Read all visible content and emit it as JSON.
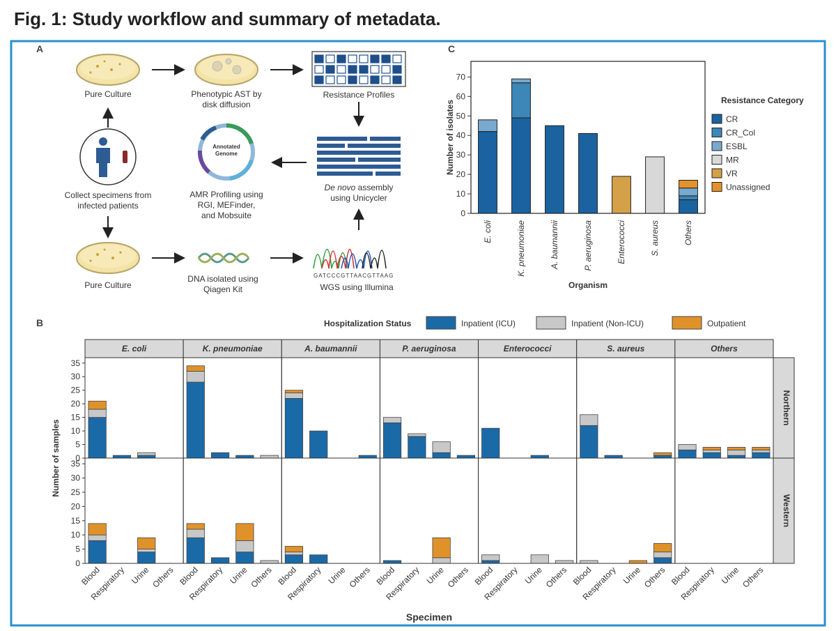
{
  "title": "Fig. 1: Study workflow and summary of metadata.",
  "panel_labels": {
    "a": "A",
    "b": "B",
    "c": "C"
  },
  "workflow": {
    "pure_culture_top": [
      "Pure Culture"
    ],
    "phenotypic_ast": [
      "Phenotypic AST by",
      "disk diffusion"
    ],
    "resistance_profiles": [
      "Resistance Profiles"
    ],
    "collect_specimens": [
      "Collect specimens from",
      "infected patients"
    ],
    "annotated_genome": [
      "Annotated",
      "Genome"
    ],
    "amr_profiling": [
      "AMR Profiling using",
      "RGI, MEFinder,",
      "and Mobsuite"
    ],
    "assembly": {
      "italic": "De novo",
      "rest": "assembly",
      "line2": "using Unicycler"
    },
    "pure_culture_bottom": [
      "Pure Culture"
    ],
    "dna_isolated": [
      "DNA isolated using",
      "Qiagen Kit"
    ],
    "wgs": [
      "WGS using Illumina"
    ]
  },
  "chart_data": [
    {
      "type": "stacked_bar",
      "y_label": "Number of isolates",
      "x_label": "Organism",
      "legend_title": "Resistance Category",
      "categories": [
        "E. coli",
        "K. pneumoniae",
        "A. baumannii",
        "P. aeruginosa",
        "Enterococci",
        "S. aureus",
        "Others"
      ],
      "series": [
        {
          "name": "CR",
          "color": "#1a63a0",
          "values": [
            42,
            49,
            45,
            41,
            0,
            0,
            7
          ]
        },
        {
          "name": "CR_Col",
          "color": "#3d86b8",
          "values": [
            0,
            18,
            0,
            0,
            0,
            0,
            2
          ]
        },
        {
          "name": "ESBL",
          "color": "#78a9cf",
          "values": [
            6,
            2,
            0,
            0,
            0,
            0,
            4
          ]
        },
        {
          "name": "MR",
          "color": "#d8d8d8",
          "values": [
            0,
            0,
            0,
            0,
            0,
            29,
            0
          ]
        },
        {
          "name": "VR",
          "color": "#d4a048",
          "values": [
            0,
            0,
            0,
            0,
            19,
            0,
            0
          ]
        },
        {
          "name": "Unassigned",
          "color": "#e3922a",
          "values": [
            0,
            0,
            0,
            0,
            0,
            0,
            4
          ]
        }
      ],
      "ylim": [
        0,
        78
      ],
      "yticks": [
        0,
        10,
        20,
        30,
        40,
        50,
        60,
        70
      ]
    },
    {
      "type": "facet_stacked_bar",
      "y_label": "Number of samples",
      "x_label": "Specimen",
      "legend_title": "Hospitalization Status",
      "columns": [
        "E. coli",
        "K. pneumoniae",
        "A. baumannii",
        "P. aeruginosa",
        "Enterococci",
        "S. aureus",
        "Others"
      ],
      "rows": [
        "Northern",
        "Western"
      ],
      "categories": [
        "Blood",
        "Respiratory",
        "Urine",
        "Others"
      ],
      "series": [
        {
          "name": "Inpatient (ICU)",
          "color": "#1a6aa8",
          "values": [
            [
              [
                15,
                1,
                1,
                0
              ],
              [
                28,
                2,
                1,
                0
              ],
              [
                22,
                10,
                0,
                1
              ],
              [
                13,
                8,
                2,
                1
              ],
              [
                11,
                0,
                1,
                0
              ],
              [
                12,
                1,
                0,
                1
              ],
              [
                3,
                2,
                1,
                2
              ]
            ],
            [
              [
                8,
                0,
                4,
                0
              ],
              [
                9,
                2,
                4,
                0
              ],
              [
                3,
                3,
                0,
                0
              ],
              [
                1,
                0,
                0,
                0
              ],
              [
                1,
                0,
                0,
                0
              ],
              [
                0,
                0,
                0,
                2
              ],
              [
                0,
                0,
                0,
                0
              ]
            ]
          ]
        },
        {
          "name": "Inpatient (Non-ICU)",
          "color": "#c8c8c8",
          "values": [
            [
              [
                3,
                0,
                1,
                0
              ],
              [
                4,
                0,
                0,
                1
              ],
              [
                2,
                0,
                0,
                0
              ],
              [
                2,
                1,
                4,
                0
              ],
              [
                0,
                0,
                0,
                0
              ],
              [
                4,
                0,
                0,
                0
              ],
              [
                2,
                1,
                2,
                1
              ]
            ],
            [
              [
                2,
                0,
                1,
                0
              ],
              [
                3,
                0,
                4,
                1
              ],
              [
                1,
                0,
                0,
                0
              ],
              [
                0,
                0,
                2,
                0
              ],
              [
                2,
                0,
                3,
                1
              ],
              [
                1,
                0,
                0,
                2
              ],
              [
                0,
                0,
                0,
                0
              ]
            ]
          ]
        },
        {
          "name": "Outpatient",
          "color": "#e0922a",
          "values": [
            [
              [
                3,
                0,
                0,
                0
              ],
              [
                2,
                0,
                0,
                0
              ],
              [
                1,
                0,
                0,
                0
              ],
              [
                0,
                0,
                0,
                0
              ],
              [
                0,
                0,
                0,
                0
              ],
              [
                0,
                0,
                0,
                1
              ],
              [
                0,
                1,
                1,
                1
              ]
            ],
            [
              [
                4,
                0,
                4,
                0
              ],
              [
                2,
                0,
                6,
                0
              ],
              [
                2,
                0,
                0,
                0
              ],
              [
                0,
                0,
                7,
                0
              ],
              [
                0,
                0,
                0,
                0
              ],
              [
                0,
                0,
                1,
                3
              ],
              [
                0,
                0,
                0,
                0
              ]
            ]
          ]
        }
      ],
      "ylim": [
        0,
        37
      ],
      "yticks": [
        0,
        5,
        10,
        15,
        20,
        25,
        30,
        35
      ]
    }
  ]
}
